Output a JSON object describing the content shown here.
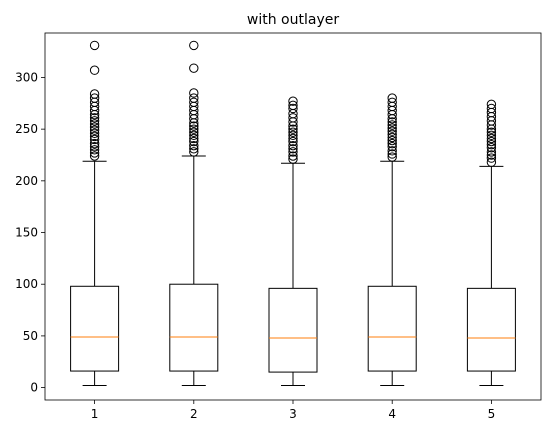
{
  "chart_data": {
    "type": "box",
    "title": "with outlayer",
    "xlabel": "",
    "ylabel": "",
    "ylim": [
      -12,
      343
    ],
    "y_ticks": [
      0,
      50,
      100,
      150,
      200,
      250,
      300
    ],
    "categories": [
      "1",
      "2",
      "3",
      "4",
      "5"
    ],
    "grid": false,
    "colors": {
      "box": "#000000",
      "median": "#ff7f0e",
      "background": "#ffffff"
    },
    "boxes": [
      {
        "name": "1",
        "whisker_low": 2,
        "q1": 16,
        "median": 49,
        "q3": 98,
        "whisker_high": 219,
        "outliers": [
          224,
          227,
          230,
          233,
          236,
          240,
          243,
          246,
          249,
          252,
          255,
          258,
          261,
          264,
          268,
          272,
          276,
          280,
          284,
          307,
          331
        ]
      },
      {
        "name": "2",
        "whisker_low": 2,
        "q1": 16,
        "median": 49,
        "q3": 100,
        "whisker_high": 224,
        "outliers": [
          228,
          231,
          234,
          238,
          241,
          244,
          247,
          250,
          253,
          256,
          260,
          264,
          268,
          272,
          276,
          280,
          285,
          309,
          331
        ]
      },
      {
        "name": "3",
        "whisker_low": 2,
        "q1": 15,
        "median": 48,
        "q3": 96,
        "whisker_high": 217,
        "outliers": [
          221,
          224,
          228,
          231,
          234,
          238,
          241,
          244,
          247,
          250,
          253,
          257,
          261,
          265,
          270,
          273,
          277
        ]
      },
      {
        "name": "4",
        "whisker_low": 2,
        "q1": 16,
        "median": 49,
        "q3": 98,
        "whisker_high": 219,
        "outliers": [
          223,
          226,
          229,
          233,
          236,
          239,
          242,
          245,
          248,
          251,
          254,
          257,
          260,
          264,
          268,
          272,
          276,
          280
        ]
      },
      {
        "name": "5",
        "whisker_low": 2,
        "q1": 16,
        "median": 48,
        "q3": 96,
        "whisker_high": 214,
        "outliers": [
          218,
          222,
          225,
          228,
          232,
          235,
          238,
          241,
          244,
          247,
          250,
          254,
          258,
          262,
          266,
          270,
          274
        ]
      }
    ]
  }
}
